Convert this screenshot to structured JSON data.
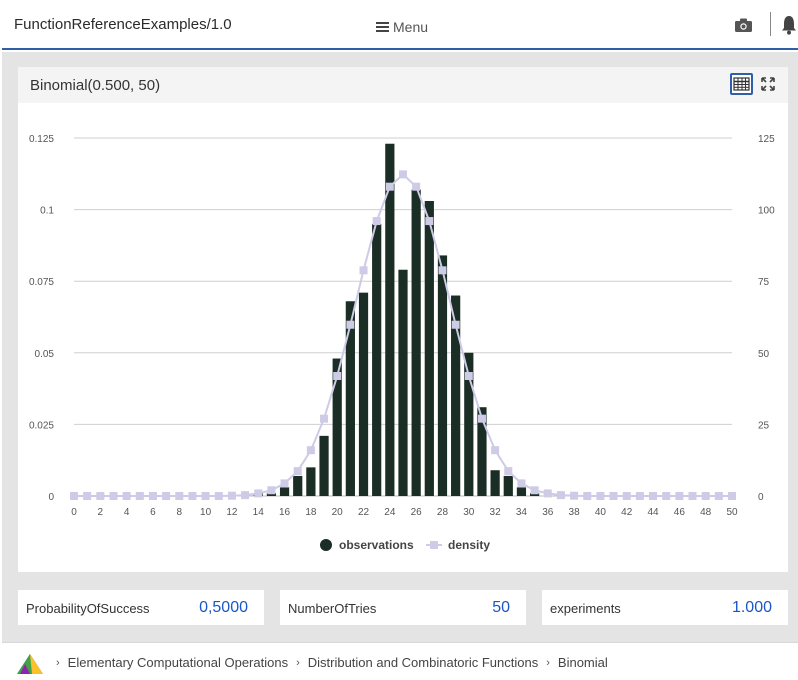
{
  "app": {
    "title": "FunctionReferenceExamples/1.0",
    "menu_label": "Menu"
  },
  "panel": {
    "title": "Binomial(0.500, 50)"
  },
  "params": [
    {
      "label": "ProbabilityOfSuccess",
      "value": "0,5000"
    },
    {
      "label": "NumberOfTries",
      "value": "50"
    },
    {
      "label": "experiments",
      "value": "1.000"
    }
  ],
  "breadcrumb": {
    "items": [
      "Elementary Computational Operations",
      "Distribution and Combinatoric Functions",
      "Binomial"
    ]
  },
  "colors": {
    "bars": "#1a2e26",
    "density": "#cdcbe6",
    "accent": "#2f5fa8",
    "value": "#1a56c8"
  },
  "icons": [
    "hamburger-icon",
    "camera-icon",
    "bell-icon",
    "table-icon",
    "expand-icon",
    "app-logo-icon"
  ],
  "chart_data": {
    "type": "bar",
    "title": "",
    "xlabel": "",
    "ylabel": "",
    "xlim": [
      0,
      50
    ],
    "ylim_left": [
      0,
      0.125
    ],
    "ylim_right": [
      0,
      125
    ],
    "x_ticks": [
      0,
      2,
      4,
      6,
      8,
      10,
      12,
      14,
      16,
      18,
      20,
      22,
      24,
      26,
      28,
      30,
      32,
      34,
      36,
      38,
      40,
      42,
      44,
      46,
      48,
      50
    ],
    "y_ticks_left": [
      "0",
      "0.025",
      "0.05",
      "0.075",
      "0.1",
      "0.125"
    ],
    "y_ticks_right": [
      "0",
      "25",
      "50",
      "75",
      "100",
      "125"
    ],
    "grid": true,
    "legend_position": "bottom-center",
    "series": [
      {
        "name": "observations",
        "kind": "bar",
        "axis": "left",
        "x": [
          14,
          15,
          16,
          17,
          18,
          19,
          20,
          21,
          22,
          23,
          24,
          25,
          26,
          27,
          28,
          29,
          30,
          31,
          32,
          33,
          34,
          35
        ],
        "values": [
          0.001,
          0.001,
          0.003,
          0.007,
          0.01,
          0.021,
          0.048,
          0.068,
          0.071,
          0.095,
          0.123,
          0.079,
          0.107,
          0.103,
          0.084,
          0.07,
          0.05,
          0.031,
          0.009,
          0.007,
          0.003,
          0.001
        ]
      },
      {
        "name": "density",
        "kind": "line",
        "axis": "right",
        "x": [
          0,
          1,
          2,
          3,
          4,
          5,
          6,
          7,
          8,
          9,
          10,
          11,
          12,
          13,
          14,
          15,
          16,
          17,
          18,
          19,
          20,
          21,
          22,
          23,
          24,
          25,
          26,
          27,
          28,
          29,
          30,
          31,
          32,
          33,
          34,
          35,
          36,
          37,
          38,
          39,
          40,
          41,
          42,
          43,
          44,
          45,
          46,
          47,
          48,
          49,
          50
        ],
        "values": [
          0,
          0,
          0,
          0,
          0,
          0,
          0,
          0,
          0,
          0,
          0,
          0,
          0.1,
          0.3,
          0.9,
          2.0,
          4.4,
          8.7,
          16.0,
          27.0,
          41.9,
          59.8,
          78.8,
          96.0,
          108.0,
          112.3,
          108.0,
          96.0,
          78.8,
          59.8,
          41.9,
          27.0,
          16.0,
          8.7,
          4.4,
          2.0,
          0.9,
          0.3,
          0.1,
          0,
          0,
          0,
          0,
          0,
          0,
          0,
          0,
          0,
          0,
          0,
          0
        ]
      }
    ]
  }
}
